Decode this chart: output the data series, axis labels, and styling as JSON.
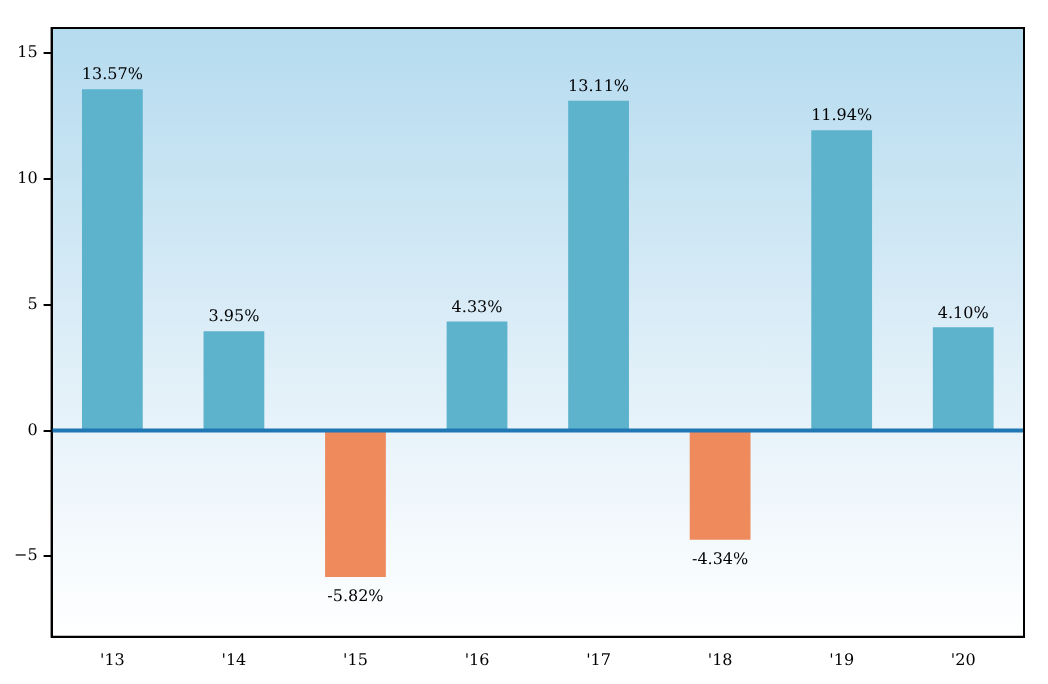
{
  "chart_data": {
    "type": "bar",
    "categories": [
      "'13",
      "'14",
      "'15",
      "'16",
      "'17",
      "'18",
      "'19",
      "'20"
    ],
    "values": [
      13.57,
      3.95,
      -5.82,
      4.33,
      13.11,
      -4.34,
      11.94,
      4.1
    ],
    "colors": [
      "#5db2cc",
      "#5db2cc",
      "#ee8a5c",
      "#5db2cc",
      "#5db2cc",
      "#ee8a5c",
      "#5db2cc",
      "#5db2cc"
    ],
    "value_labels": [
      "13.57%",
      "3.95%",
      "-5.82%",
      "4.33%",
      "13.11%",
      "-4.34%",
      "11.94%",
      "4.10%"
    ],
    "ylim": [
      -8.2,
      16
    ],
    "yticks": [
      {
        "value": -5,
        "label": "−5"
      },
      0,
      5,
      10,
      15
    ],
    "ref_lines": [
      {
        "axis": "y",
        "value": 0,
        "label": null,
        "color": "#1f77b4"
      }
    ],
    "grid": false,
    "legend": false
  }
}
